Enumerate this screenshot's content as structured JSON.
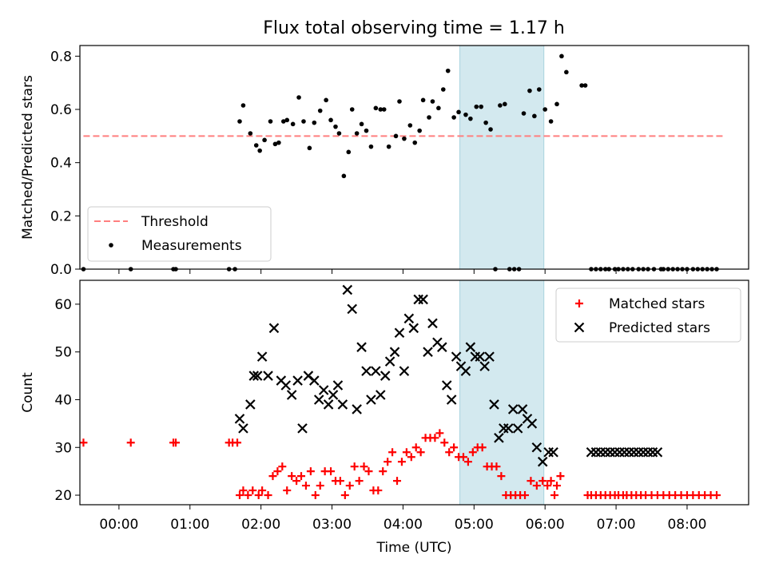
{
  "title": "Flux total observing time = 1.17 h",
  "chart_data": [
    {
      "type": "scatter",
      "ylabel": "Matched/Predicted stars",
      "xlim": [
        "23:27",
        "08:52"
      ],
      "ylim": [
        0,
        0.84
      ],
      "yticks": [
        0.0,
        0.2,
        0.4,
        0.6,
        0.8
      ],
      "ytick_labels": [
        "0.0",
        "0.2",
        "0.4",
        "0.6",
        "0.8"
      ],
      "shaded_interval": [
        "04:48",
        "05:59"
      ],
      "shade_color": "#d3e9ef",
      "threshold": {
        "name": "Threshold",
        "value": 0.5,
        "x_range": [
          "23:30",
          "08:30"
        ],
        "color": "#ff7f7f"
      },
      "measurements": {
        "name": "Measurements",
        "color": "#000000",
        "x": [
          "23:30",
          "00:10",
          "00:46",
          "00:48",
          "01:33",
          "01:38",
          "01:42",
          "01:45",
          "01:51",
          "01:56",
          "01:59",
          "02:03",
          "02:08",
          "02:12",
          "02:15",
          "02:19",
          "02:22",
          "02:27",
          "02:32",
          "02:36",
          "02:41",
          "02:45",
          "02:50",
          "02:55",
          "02:59",
          "03:03",
          "03:06",
          "03:10",
          "03:14",
          "03:17",
          "03:21",
          "03:25",
          "03:29",
          "03:33",
          "03:37",
          "03:41",
          "03:44",
          "03:48",
          "03:54",
          "03:57",
          "04:01",
          "04:06",
          "04:10",
          "04:14",
          "04:17",
          "04:22",
          "04:25",
          "04:30",
          "04:34",
          "04:38",
          "04:43",
          "04:47",
          "04:53",
          "04:57",
          "05:02",
          "05:06",
          "05:10",
          "05:14",
          "05:18",
          "05:22",
          "05:26",
          "05:30",
          "05:34",
          "05:38",
          "05:42",
          "05:47",
          "05:51",
          "05:55",
          "06:00",
          "06:05",
          "06:10",
          "06:14",
          "06:18",
          "06:31",
          "06:34",
          "06:39",
          "06:43",
          "06:47",
          "06:51",
          "06:54",
          "06:59",
          "07:02",
          "07:06",
          "07:10",
          "07:14",
          "07:19",
          "07:23",
          "07:27",
          "07:32",
          "07:38",
          "07:40",
          "07:44",
          "07:48",
          "07:52",
          "07:56",
          "08:00",
          "08:05",
          "08:09",
          "08:13",
          "08:17",
          "08:21",
          "08:25"
        ],
        "y": [
          0.0,
          0.0,
          0.0,
          0.0,
          0.0,
          0.0,
          0.555,
          0.615,
          0.51,
          0.465,
          0.445,
          0.485,
          0.555,
          0.47,
          0.475,
          0.555,
          0.56,
          0.545,
          0.645,
          0.555,
          0.455,
          0.55,
          0.595,
          0.635,
          0.56,
          0.535,
          0.51,
          0.35,
          0.44,
          0.6,
          0.51,
          0.545,
          0.52,
          0.46,
          0.605,
          0.6,
          0.6,
          0.46,
          0.5,
          0.63,
          0.49,
          0.54,
          0.475,
          0.52,
          0.635,
          0.57,
          0.63,
          0.605,
          0.675,
          0.745,
          0.57,
          0.59,
          0.58,
          0.565,
          0.61,
          0.61,
          0.55,
          0.525,
          0.0,
          0.615,
          0.62,
          0.0,
          0.0,
          0.0,
          0.585,
          0.67,
          0.575,
          0.675,
          0.6,
          0.555,
          0.62,
          0.8,
          0.74,
          0.69,
          0.69,
          0.0,
          0.0,
          0.0,
          0.0,
          0.0,
          0.0,
          0.0,
          0.0,
          0.0,
          0.0,
          0.0,
          0.0,
          0.0,
          0.0,
          0.0,
          0.0,
          0.0,
          0.0,
          0.0,
          0.0,
          0.0,
          0.0,
          0.0,
          0.0,
          0.0,
          0.0,
          0.0
        ]
      },
      "legend": {
        "position": "lower left",
        "entries": [
          "Threshold",
          "Measurements"
        ]
      }
    },
    {
      "type": "scatter",
      "xlabel": "Time (UTC)",
      "ylabel": "Count",
      "xlim": [
        "23:27",
        "08:52"
      ],
      "ylim": [
        18,
        65
      ],
      "yticks": [
        20,
        30,
        40,
        50,
        60
      ],
      "ytick_labels": [
        "20",
        "30",
        "40",
        "50",
        "60"
      ],
      "xticks": [
        "00:00",
        "01:00",
        "02:00",
        "03:00",
        "04:00",
        "05:00",
        "06:00",
        "07:00",
        "08:00"
      ],
      "shaded_interval": [
        "04:48",
        "05:59"
      ],
      "shade_color": "#d3e9ef",
      "series": [
        {
          "name": "Matched stars",
          "marker": "+",
          "color": "#ff0000",
          "x": [
            "23:30",
            "00:10",
            "00:46",
            "00:48",
            "01:33",
            "01:36",
            "01:40",
            "01:42",
            "01:45",
            "01:49",
            "01:53",
            "01:58",
            "02:01",
            "02:06",
            "02:10",
            "02:14",
            "02:18",
            "02:22",
            "02:26",
            "02:30",
            "02:34",
            "02:38",
            "02:42",
            "02:46",
            "02:50",
            "02:54",
            "02:59",
            "03:03",
            "03:07",
            "03:11",
            "03:15",
            "03:19",
            "03:23",
            "03:27",
            "03:31",
            "03:35",
            "03:39",
            "03:43",
            "03:47",
            "03:51",
            "03:55",
            "03:59",
            "04:03",
            "04:07",
            "04:11",
            "04:15",
            "04:19",
            "04:23",
            "04:27",
            "04:31",
            "04:35",
            "04:39",
            "04:43",
            "04:47",
            "04:51",
            "04:55",
            "04:59",
            "05:03",
            "05:07",
            "05:11",
            "05:15",
            "05:19",
            "05:23",
            "05:27",
            "05:31",
            "05:35",
            "05:39",
            "05:43",
            "05:48",
            "05:53",
            "05:58",
            "06:02",
            "06:05",
            "06:08",
            "06:10",
            "06:13",
            "06:36",
            "06:39",
            "06:43",
            "06:47",
            "06:51",
            "06:55",
            "06:59",
            "07:02",
            "07:06",
            "07:09",
            "07:13",
            "07:17",
            "07:21",
            "07:25",
            "07:30",
            "07:35",
            "07:40",
            "07:45",
            "07:50",
            "07:55",
            "08:00",
            "08:05",
            "08:10",
            "08:15",
            "08:20",
            "08:25"
          ],
          "y": [
            31,
            31,
            31,
            31,
            31,
            31,
            31,
            20,
            21,
            20,
            21,
            20,
            21,
            20,
            24,
            25,
            26,
            21,
            24,
            23,
            24,
            22,
            25,
            20,
            22,
            25,
            25,
            23,
            23,
            20,
            22,
            26,
            23,
            26,
            25,
            21,
            21,
            25,
            27,
            29,
            23,
            27,
            29,
            28,
            30,
            29,
            32,
            32,
            32,
            33,
            31,
            29,
            30,
            28,
            28,
            27,
            29,
            30,
            30,
            26,
            26,
            26,
            24,
            20,
            20,
            20,
            20,
            20,
            23,
            22,
            23,
            22,
            23,
            20,
            22,
            24,
            20,
            20,
            20,
            20,
            20,
            20,
            20,
            20,
            20,
            20,
            20,
            20,
            20,
            20,
            20,
            20,
            20,
            20,
            20,
            20,
            20,
            20,
            20,
            20,
            20,
            20
          ]
        },
        {
          "name": "Predicted stars",
          "marker": "x",
          "color": "#000000",
          "x": [
            "01:42",
            "01:45",
            "01:51",
            "01:54",
            "01:57",
            "02:01",
            "02:06",
            "02:11",
            "02:17",
            "02:21",
            "02:26",
            "02:31",
            "02:35",
            "02:40",
            "02:45",
            "02:49",
            "02:53",
            "02:57",
            "03:01",
            "03:05",
            "03:09",
            "03:13",
            "03:17",
            "03:21",
            "03:25",
            "03:29",
            "03:33",
            "03:37",
            "03:41",
            "03:45",
            "03:49",
            "03:53",
            "03:57",
            "04:01",
            "04:05",
            "04:09",
            "04:13",
            "04:17",
            "04:21",
            "04:25",
            "04:29",
            "04:33",
            "04:37",
            "04:41",
            "04:45",
            "04:49",
            "04:53",
            "04:57",
            "05:01",
            "05:05",
            "05:09",
            "05:13",
            "05:17",
            "05:21",
            "05:25",
            "05:29",
            "05:33",
            "05:37",
            "05:41",
            "05:45",
            "05:49",
            "05:53",
            "05:58",
            "06:03",
            "06:07",
            "06:39",
            "06:43",
            "06:47",
            "06:51",
            "06:55",
            "06:59",
            "07:03",
            "07:07",
            "07:11",
            "07:15",
            "07:19",
            "07:23",
            "07:27",
            "07:31",
            "07:35"
          ],
          "y": [
            36,
            34,
            39,
            45,
            45,
            49,
            45,
            55,
            44,
            43,
            41,
            44,
            34,
            45,
            44,
            40,
            42,
            39,
            41,
            43,
            39,
            63,
            59,
            38,
            51,
            46,
            40,
            46,
            41,
            45,
            48,
            50,
            54,
            46,
            57,
            55,
            61,
            61,
            50,
            56,
            52,
            51,
            43,
            40,
            49,
            47,
            46,
            51,
            49,
            49,
            47,
            49,
            39,
            32,
            34,
            34,
            38,
            34,
            38,
            36,
            35,
            30,
            27,
            29,
            29,
            29,
            29,
            29,
            29,
            29,
            29,
            29,
            29,
            29,
            29,
            29,
            29,
            29,
            29,
            29
          ]
        }
      ],
      "legend": {
        "position": "upper right",
        "entries": [
          "Matched stars",
          "Predicted stars"
        ]
      }
    }
  ]
}
